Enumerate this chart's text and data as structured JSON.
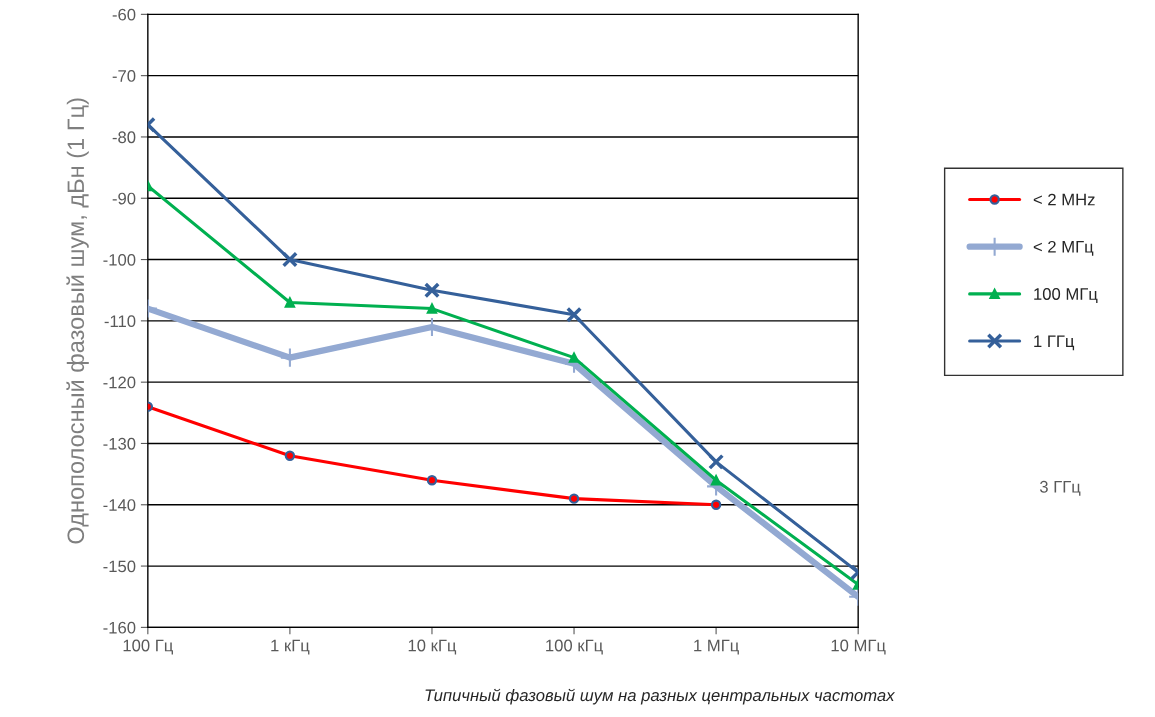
{
  "chart_data": {
    "type": "line",
    "xlabel": "Типичный фазовый шум на разных центральных частотах",
    "ylabel": "Однополосный фазовый шум, дБн (1 Гц)",
    "categories": [
      "100 Гц",
      "1 кГц",
      "10 кГц",
      "100 кГц",
      "1 МГц",
      "10 МГц"
    ],
    "series": [
      {
        "name": "< 2 MHz",
        "color": "#ff0000",
        "marker": "circle",
        "values": [
          -124,
          -132,
          -136,
          -139,
          -140,
          null
        ]
      },
      {
        "name": "< 2 МГц",
        "color": "#93a9d2",
        "marker": "plus",
        "values": [
          -108,
          -116,
          -111,
          -117,
          -137,
          -155
        ]
      },
      {
        "name": "100 МГц",
        "color": "#00b050",
        "marker": "triangle",
        "values": [
          -88,
          -107,
          -108,
          -116,
          -136,
          -153
        ]
      },
      {
        "name": "1 ГГц",
        "color": "#35609a",
        "marker": "cross",
        "values": [
          -78,
          -100,
          -105,
          -109,
          -133,
          -151
        ]
      }
    ],
    "annotations": [
      "3 ГГц"
    ],
    "ylim": [
      -160,
      -60
    ],
    "yticks": [
      -160,
      -150,
      -140,
      -130,
      -120,
      -110,
      -100,
      -90,
      -80,
      -70,
      -60
    ],
    "grid": "y",
    "legend": "right"
  }
}
